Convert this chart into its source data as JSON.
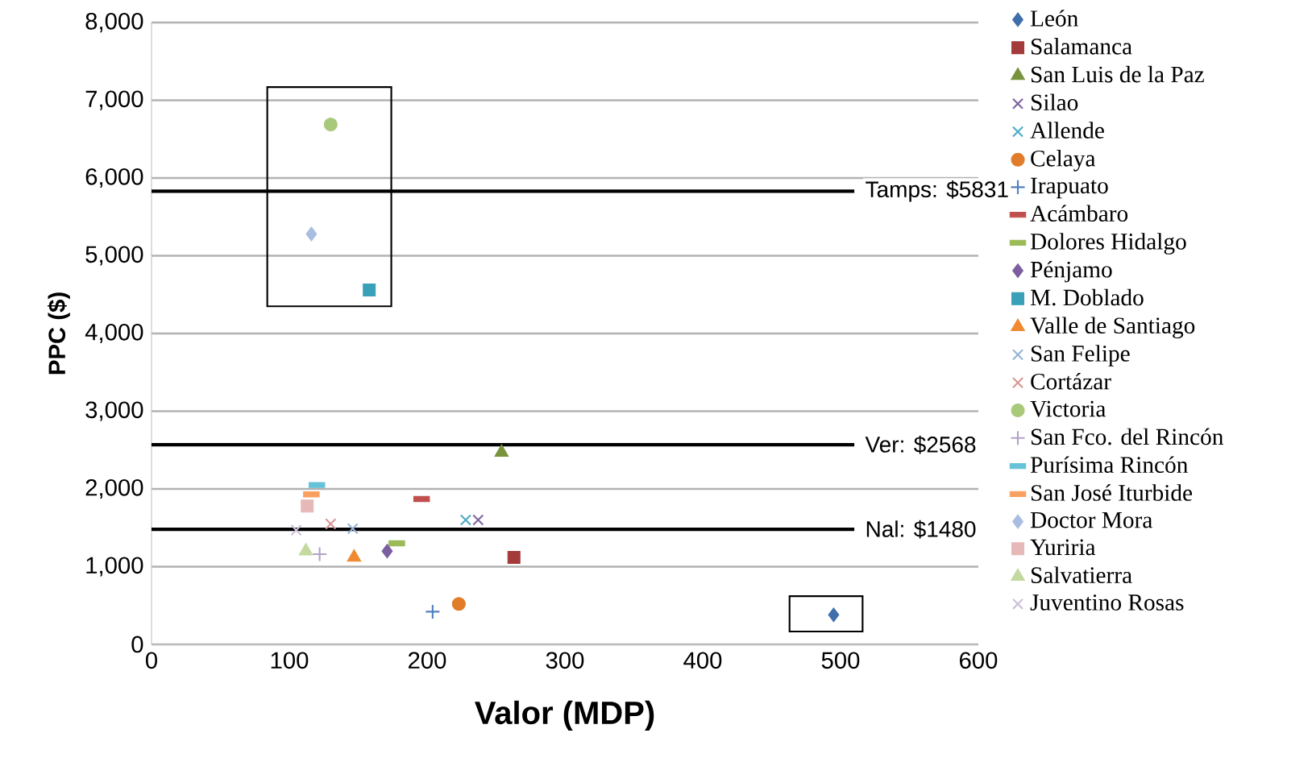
{
  "chart_data": {
    "type": "scatter",
    "xlabel": "Valor (MDP)",
    "ylabel": "PPC ($)",
    "xlim": [
      0,
      600
    ],
    "xticks": [
      0,
      100,
      200,
      300,
      400,
      500,
      600
    ],
    "ylim": [
      0,
      8000
    ],
    "yticks": [
      {
        "value": 0,
        "label": "0"
      },
      {
        "value": 1000,
        "label": "1,000"
      },
      {
        "value": 2000,
        "label": "2,000"
      },
      {
        "value": 3000,
        "label": "3,000"
      },
      {
        "value": 4000,
        "label": "4,000"
      },
      {
        "value": 5000,
        "label": "5,000"
      },
      {
        "value": 6000,
        "label": "6,000"
      },
      {
        "value": 7000,
        "label": "7,000"
      },
      {
        "value": 8000,
        "label": "8,000"
      }
    ],
    "grid": "y",
    "legend": "right",
    "ref_lines": [
      {
        "axis": "y",
        "value": 5831,
        "label": "Tamps: $5831",
        "color": "#000000"
      },
      {
        "axis": "y",
        "value": 2568,
        "label": "Ver: $2568",
        "color": "#000000"
      },
      {
        "axis": "y",
        "value": 1480,
        "label": "Nal: $1480",
        "color": "#000000"
      }
    ],
    "series": [
      {
        "name": "León",
        "color": "#3f6faa",
        "marker": "diamond",
        "x": [
          495
        ],
        "values": [
          380
        ]
      },
      {
        "name": "Salamanca",
        "color": "#a33b3a",
        "marker": "square",
        "x": [
          263
        ],
        "values": [
          1120
        ]
      },
      {
        "name": "San Luis de la Paz",
        "color": "#77933c",
        "marker": "triangle",
        "x": [
          254
        ],
        "values": [
          2470
        ]
      },
      {
        "name": "Silao",
        "color": "#8064a2",
        "marker": "cross",
        "x": [
          237
        ],
        "values": [
          1600
        ]
      },
      {
        "name": "Allende",
        "color": "#4bacc6",
        "marker": "cross",
        "x": [
          228
        ],
        "values": [
          1600
        ]
      },
      {
        "name": "Celaya",
        "color": "#e07c2a",
        "marker": "circle",
        "x": [
          223
        ],
        "values": [
          520
        ]
      },
      {
        "name": "Irapuato",
        "color": "#4f81bd",
        "marker": "plus",
        "x": [
          204
        ],
        "values": [
          420
        ]
      },
      {
        "name": "Acámbaro",
        "color": "#c0504d",
        "x": [
          196
        ],
        "values": [
          1870
        ]
      },
      {
        "name": "Dolores Hidalgo",
        "color": "#9bbb59",
        "x": [
          178
        ],
        "values": [
          1300
        ]
      },
      {
        "name": "Pénjamo",
        "color": "#7d5fa0",
        "marker": "diamond",
        "x": [
          171
        ],
        "values": [
          1200
        ]
      },
      {
        "name": "M. Doblado",
        "color": "#3aa0b8",
        "marker": "square",
        "x": [
          158
        ],
        "values": [
          4560
        ]
      },
      {
        "name": "Valle de Santiago",
        "color": "#f08a30",
        "marker": "triangle",
        "x": [
          147
        ],
        "values": [
          1120
        ]
      },
      {
        "name": "San Felipe",
        "color": "#95b3d7",
        "marker": "cross",
        "x": [
          146
        ],
        "values": [
          1490
        ]
      },
      {
        "name": "Cortázar",
        "color": "#d99694",
        "marker": "cross",
        "x": [
          130
        ],
        "values": [
          1550
        ]
      },
      {
        "name": "Victoria",
        "color": "#a9c97a",
        "marker": "circle",
        "x": [
          130
        ],
        "values": [
          6690
        ]
      },
      {
        "name": "San Fco. del Rincón",
        "color": "#b3a2c7",
        "marker": "plus",
        "x": [
          122
        ],
        "values": [
          1160
        ]
      },
      {
        "name": "Purísima Rincón",
        "color": "#66c2d8",
        "x": [
          120
        ],
        "values": [
          2050
        ]
      },
      {
        "name": "San José Iturbide",
        "color": "#f9a060",
        "x": [
          116
        ],
        "values": [
          1930
        ]
      },
      {
        "name": "Doctor Mora",
        "color": "#a8bde0",
        "marker": "diamond",
        "x": [
          116
        ],
        "values": [
          5280
        ]
      },
      {
        "name": "Yuriria",
        "color": "#e6b9b8",
        "marker": "square",
        "x": [
          113
        ],
        "values": [
          1780
        ]
      },
      {
        "name": "Salvatierra",
        "color": "#c4d9a0",
        "marker": "triangle",
        "x": [
          112
        ],
        "values": [
          1200
        ]
      },
      {
        "name": "Juventino Rosas",
        "color": "#ccc1da",
        "marker": "cross",
        "x": [
          105
        ],
        "values": [
          1470
        ]
      }
    ]
  }
}
